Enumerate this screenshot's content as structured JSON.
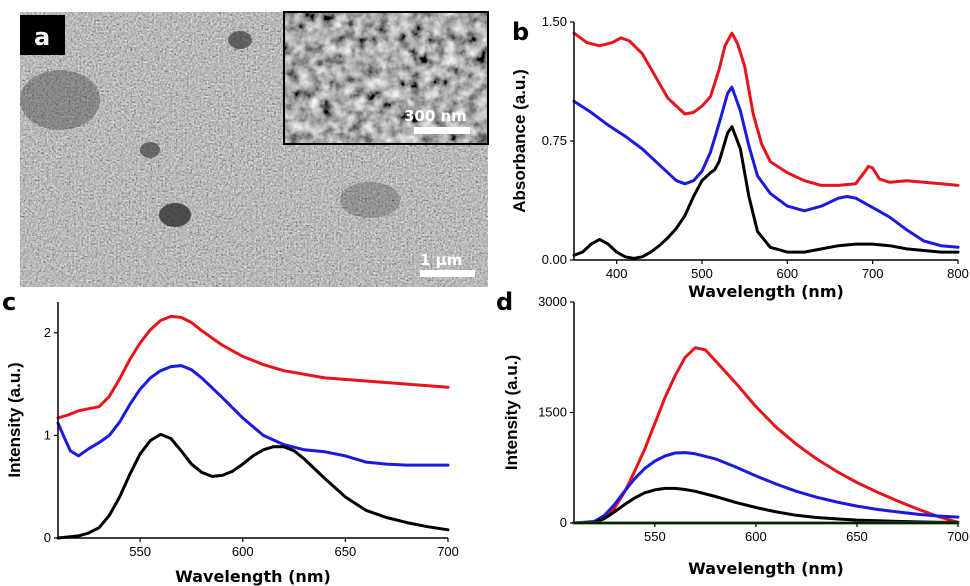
{
  "panels": {
    "a": {
      "letter": "a",
      "scale_main": "1 μm",
      "scale_inset": "300 nm"
    }
  },
  "colors": {
    "red": "#e8141b",
    "blue": "#1a1ae0",
    "black": "#000000",
    "green": "#2a7a1a"
  },
  "chart_data": [
    {
      "panel": "b",
      "type": "line",
      "xlabel": "Wavelength (nm)",
      "ylabel": "Absorbance (a.u.)",
      "xlim": [
        350,
        800
      ],
      "ylim": [
        0,
        1.5
      ],
      "xticks": [
        400,
        500,
        600,
        700,
        800
      ],
      "yticks": [
        0.0,
        0.75,
        1.5
      ],
      "ytick_labels": [
        "0.00",
        "0.75",
        "1.50"
      ],
      "series": [
        {
          "color": "red",
          "x": [
            350,
            365,
            380,
            395,
            405,
            415,
            430,
            445,
            460,
            470,
            480,
            490,
            500,
            510,
            520,
            527,
            535,
            542,
            550,
            560,
            570,
            580,
            600,
            620,
            640,
            660,
            680,
            690,
            695,
            700,
            708,
            720,
            740,
            760,
            780,
            800
          ],
          "y": [
            1.43,
            1.37,
            1.35,
            1.37,
            1.4,
            1.38,
            1.3,
            1.16,
            1.02,
            0.97,
            0.92,
            0.93,
            0.97,
            1.03,
            1.2,
            1.35,
            1.43,
            1.36,
            1.22,
            0.92,
            0.73,
            0.62,
            0.55,
            0.5,
            0.47,
            0.47,
            0.48,
            0.55,
            0.59,
            0.58,
            0.51,
            0.49,
            0.5,
            0.49,
            0.48,
            0.47
          ]
        },
        {
          "color": "blue",
          "x": [
            350,
            370,
            390,
            410,
            430,
            450,
            470,
            480,
            490,
            500,
            510,
            520,
            530,
            535,
            545,
            555,
            565,
            580,
            600,
            620,
            640,
            660,
            670,
            680,
            700,
            720,
            740,
            760,
            780,
            800
          ],
          "y": [
            1.0,
            0.93,
            0.85,
            0.78,
            0.7,
            0.6,
            0.5,
            0.48,
            0.5,
            0.56,
            0.68,
            0.86,
            1.05,
            1.09,
            0.94,
            0.72,
            0.53,
            0.42,
            0.34,
            0.31,
            0.34,
            0.39,
            0.4,
            0.39,
            0.33,
            0.27,
            0.19,
            0.12,
            0.09,
            0.08
          ]
        },
        {
          "color": "black",
          "x": [
            350,
            360,
            370,
            380,
            390,
            400,
            410,
            420,
            430,
            440,
            450,
            460,
            470,
            480,
            490,
            500,
            510,
            515,
            520,
            530,
            535,
            545,
            555,
            565,
            580,
            600,
            620,
            640,
            660,
            680,
            700,
            720,
            740,
            760,
            780,
            800
          ],
          "y": [
            0.03,
            0.05,
            0.1,
            0.13,
            0.1,
            0.05,
            0.02,
            0.01,
            0.02,
            0.05,
            0.09,
            0.14,
            0.2,
            0.28,
            0.4,
            0.5,
            0.55,
            0.57,
            0.62,
            0.8,
            0.84,
            0.7,
            0.4,
            0.18,
            0.08,
            0.05,
            0.05,
            0.07,
            0.09,
            0.1,
            0.1,
            0.09,
            0.07,
            0.06,
            0.05,
            0.05
          ]
        }
      ]
    },
    {
      "panel": "c",
      "type": "line",
      "xlabel": "Wavelength (nm)",
      "ylabel": "Intensity (a.u.)",
      "xlim": [
        510,
        700
      ],
      "ylim": [
        0,
        2.3
      ],
      "xticks": [
        550,
        600,
        650,
        700
      ],
      "yticks": [
        0,
        1,
        2
      ],
      "series": [
        {
          "color": "red",
          "x": [
            510,
            515,
            520,
            525,
            530,
            535,
            540,
            545,
            550,
            555,
            560,
            565,
            570,
            575,
            580,
            590,
            600,
            610,
            620,
            640,
            660,
            680,
            700
          ],
          "y": [
            1.17,
            1.2,
            1.24,
            1.26,
            1.28,
            1.38,
            1.55,
            1.74,
            1.9,
            2.03,
            2.12,
            2.16,
            2.15,
            2.1,
            2.02,
            1.88,
            1.77,
            1.69,
            1.63,
            1.56,
            1.53,
            1.5,
            1.47
          ]
        },
        {
          "color": "blue",
          "x": [
            510,
            513,
            516,
            520,
            525,
            530,
            535,
            540,
            545,
            550,
            555,
            560,
            565,
            570,
            575,
            580,
            590,
            600,
            610,
            620,
            630,
            640,
            650,
            660,
            670,
            680,
            690,
            700
          ],
          "y": [
            1.12,
            0.98,
            0.85,
            0.8,
            0.87,
            0.93,
            1.0,
            1.13,
            1.3,
            1.45,
            1.56,
            1.63,
            1.67,
            1.68,
            1.64,
            1.56,
            1.37,
            1.17,
            1.0,
            0.91,
            0.86,
            0.84,
            0.8,
            0.74,
            0.72,
            0.71,
            0.71,
            0.71
          ]
        },
        {
          "color": "black",
          "x": [
            510,
            520,
            525,
            530,
            535,
            540,
            545,
            550,
            555,
            560,
            565,
            570,
            575,
            580,
            585,
            590,
            595,
            600,
            605,
            610,
            615,
            620,
            625,
            630,
            640,
            650,
            660,
            670,
            680,
            690,
            700
          ],
          "y": [
            0.0,
            0.02,
            0.05,
            0.1,
            0.22,
            0.4,
            0.62,
            0.82,
            0.95,
            1.01,
            0.97,
            0.85,
            0.72,
            0.64,
            0.6,
            0.61,
            0.65,
            0.72,
            0.8,
            0.86,
            0.89,
            0.89,
            0.85,
            0.77,
            0.58,
            0.4,
            0.27,
            0.2,
            0.15,
            0.11,
            0.08
          ]
        }
      ]
    },
    {
      "panel": "d",
      "type": "line",
      "xlabel": "Wavelength (nm)",
      "ylabel": "Intensity (a.u.)",
      "xlim": [
        510,
        700
      ],
      "ylim": [
        0,
        3000
      ],
      "xticks": [
        550,
        600,
        650,
        700
      ],
      "yticks": [
        0,
        1500,
        3000
      ],
      "series": [
        {
          "color": "red",
          "x": [
            510,
            520,
            525,
            530,
            535,
            540,
            545,
            550,
            555,
            560,
            565,
            570,
            575,
            580,
            590,
            600,
            610,
            620,
            630,
            640,
            650,
            660,
            670,
            680,
            690,
            700
          ],
          "y": [
            0,
            5,
            60,
            200,
            420,
            700,
            1000,
            1350,
            1700,
            2000,
            2250,
            2380,
            2350,
            2200,
            1900,
            1580,
            1300,
            1070,
            870,
            700,
            550,
            420,
            300,
            190,
            90,
            10
          ]
        },
        {
          "color": "blue",
          "x": [
            510,
            520,
            525,
            530,
            535,
            540,
            545,
            550,
            555,
            560,
            565,
            570,
            580,
            590,
            600,
            610,
            620,
            630,
            640,
            650,
            660,
            670,
            680,
            690,
            700
          ],
          "y": [
            0,
            20,
            100,
            250,
            430,
            600,
            740,
            840,
            910,
            950,
            955,
            940,
            870,
            760,
            640,
            530,
            430,
            350,
            285,
            230,
            185,
            150,
            120,
            95,
            80
          ]
        },
        {
          "color": "black",
          "x": [
            510,
            520,
            525,
            530,
            535,
            540,
            545,
            550,
            555,
            560,
            565,
            570,
            580,
            590,
            600,
            610,
            620,
            630,
            640,
            650,
            660,
            670,
            680,
            690,
            700
          ],
          "y": [
            0,
            10,
            60,
            150,
            250,
            340,
            410,
            450,
            470,
            470,
            455,
            430,
            360,
            280,
            210,
            150,
            105,
            75,
            55,
            40,
            30,
            22,
            15,
            10,
            8
          ]
        },
        {
          "color": "green",
          "x": [
            510,
            700
          ],
          "y": [
            0,
            0
          ]
        }
      ]
    }
  ]
}
